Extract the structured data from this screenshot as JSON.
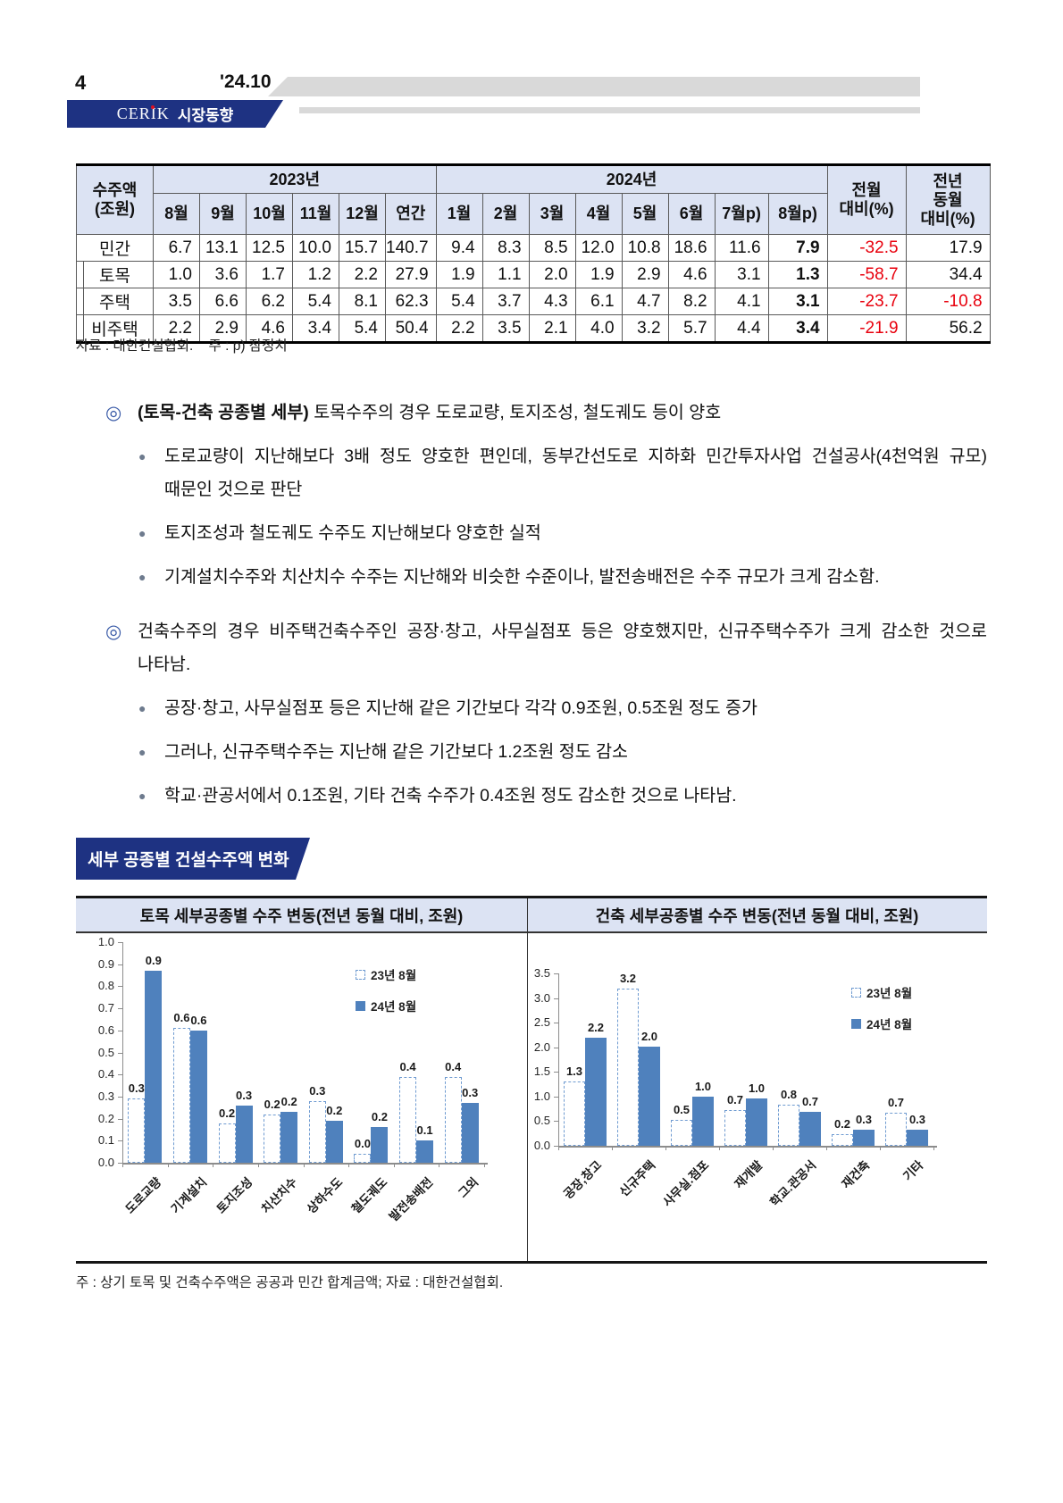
{
  "page": {
    "number": "4",
    "date": "'24.10",
    "brand": "CERIK",
    "brand_label": "시장동향"
  },
  "colors": {
    "navy": "#1e3282",
    "header_bg": "#dce3f3",
    "bar_blue": "#4f81bd",
    "bar_dash": "#6f9bd1",
    "red": "#e8000d",
    "gray_bar": "#d9d9d9"
  },
  "table": {
    "header": {
      "col0": "수주액\n(조원)",
      "y2023": "2023년",
      "y2024": "2024년",
      "months": [
        "8월",
        "9월",
        "10월",
        "11월",
        "12월",
        "연간",
        "1월",
        "2월",
        "3월",
        "4월",
        "5월",
        "6월",
        "7월p)",
        "8월p)"
      ],
      "mom": "전월\n대비(%)",
      "yoy": "전년\n동월\n대비(%)"
    },
    "rows": [
      {
        "label": "민간",
        "sub": false,
        "values": [
          "6.7",
          "13.1",
          "12.5",
          "10.0",
          "15.7",
          "140.7",
          "9.4",
          "8.3",
          "8.5",
          "12.0",
          "10.8",
          "18.6",
          "11.6",
          "7.9"
        ],
        "mom": "-32.5",
        "yoy": "17.9"
      },
      {
        "label": "토목",
        "sub": true,
        "values": [
          "1.0",
          "3.6",
          "1.7",
          "1.2",
          "2.2",
          "27.9",
          "1.9",
          "1.1",
          "2.0",
          "1.9",
          "2.9",
          "4.6",
          "3.1",
          "1.3"
        ],
        "mom": "-58.7",
        "yoy": "34.4"
      },
      {
        "label": "주택",
        "sub": true,
        "values": [
          "3.5",
          "6.6",
          "6.2",
          "5.4",
          "8.1",
          "62.3",
          "5.4",
          "3.7",
          "4.3",
          "6.1",
          "4.7",
          "8.2",
          "4.1",
          "3.1"
        ],
        "mom": "-23.7",
        "yoy": "-10.8"
      },
      {
        "label": "비주택",
        "sub": true,
        "values": [
          "2.2",
          "2.9",
          "4.6",
          "3.4",
          "5.4",
          "50.4",
          "2.2",
          "3.5",
          "2.1",
          "4.0",
          "3.2",
          "5.7",
          "4.4",
          "3.4"
        ],
        "mom": "-21.9",
        "yoy": "56.2"
      }
    ]
  },
  "table_note": "자료 : 대한건설협회.    주 : p) 잠정치",
  "sections": [
    {
      "marker": "◎",
      "bold_prefix": "(토목-건축 공종별 세부)",
      "text": " 토목수주의 경우 도로교량, 토지조성, 철도궤도 등이 양호",
      "bullets": [
        "도로교량이 지난해보다 3배 정도 양호한 편인데, 동부간선도로 지하화 민간투자사업 건설공사(4천억원 규모) 때문인 것으로 판단",
        "토지조성과 철도궤도 수주도 지난해보다 양호한 실적",
        "기계설치수주와 치산치수 수주는 지난해와 비슷한 수준이나, 발전송배전은 수주 규모가 크게 감소함."
      ]
    },
    {
      "marker": "◎",
      "bold_prefix": "",
      "text": "건축수주의 경우 비주택건축수주인 공장·창고, 사무실점포 등은 양호했지만, 신규주택수주가 크게 감소한 것으로 나타남.",
      "bullets": [
        "공장·창고, 사무실점포 등은 지난해 같은 기간보다 각각 0.9조원, 0.5조원 정도 증가",
        "그러나, 신규주택수주는 지난해 같은 기간보다 1.2조원 정도 감소",
        "학교·관공서에서 0.1조원, 기타 건축 수주가 0.4조원 정도 감소한 것으로 나타남."
      ]
    }
  ],
  "section_banner": "세부 공종별 건설수주액 변화",
  "chart_data": [
    {
      "type": "bar",
      "title": "토목 세부공종별 수주 변동(전년 동월 대비, 조원)",
      "categories": [
        "도로교량",
        "기계설치",
        "토지조성",
        "치산치수",
        "상하수도",
        "철도궤도",
        "발전송배전",
        "그외"
      ],
      "series": [
        {
          "name": "23년 8월",
          "values": [
            0.3,
            0.6,
            0.2,
            0.2,
            0.3,
            0.0,
            0.4,
            0.4
          ],
          "draw": [
            0.29,
            0.61,
            0.18,
            0.22,
            0.28,
            0.04,
            0.39,
            0.39
          ]
        },
        {
          "name": "24년 8월",
          "values": [
            0.9,
            0.6,
            0.3,
            0.2,
            0.2,
            0.2,
            0.1,
            0.3
          ],
          "draw": [
            0.87,
            0.6,
            0.26,
            0.23,
            0.19,
            0.16,
            0.1,
            0.27
          ]
        }
      ],
      "ylim": [
        0,
        1.0
      ],
      "ytick": 0.1,
      "grid": false,
      "legend_position": "upper right"
    },
    {
      "type": "bar",
      "title": "건축 세부공종별 수주 변동(전년 동월 대비, 조원)",
      "categories": [
        "공장,창고",
        "신규주택",
        "사무실.점포",
        "재개발",
        "학교.관공서",
        "재건축",
        "기타"
      ],
      "series": [
        {
          "name": "23년 8월",
          "values": [
            1.3,
            3.2,
            0.5,
            0.7,
            0.8,
            0.2,
            0.7
          ],
          "draw": [
            1.3,
            3.2,
            0.52,
            0.73,
            0.83,
            0.24,
            0.68
          ]
        },
        {
          "name": "24년 8월",
          "values": [
            2.2,
            2.0,
            1.0,
            1.0,
            0.7,
            0.3,
            0.3
          ],
          "draw": [
            2.2,
            2.02,
            0.99,
            0.97,
            0.69,
            0.33,
            0.33
          ]
        }
      ],
      "ylim": [
        0,
        3.5
      ],
      "ytick": 0.5,
      "grid": false,
      "legend_position": "upper right"
    }
  ],
  "charts_note": "주 : 상기 토목 및 건축수주액은 공공과 민간 합계금액; 자료 : 대한건설협회."
}
